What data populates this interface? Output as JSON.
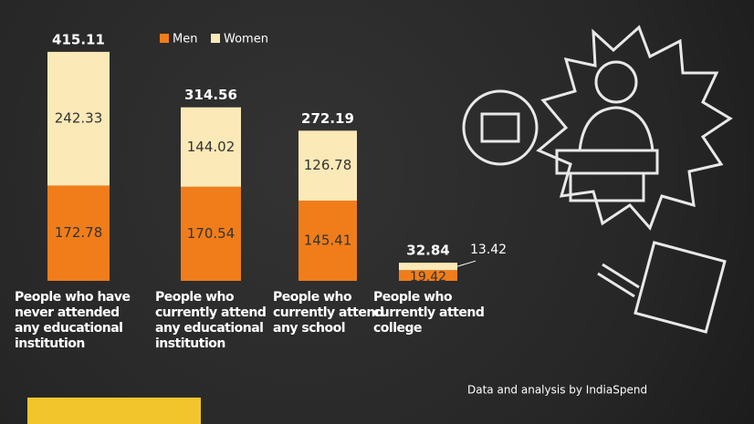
{
  "chart_data": {
    "type": "stacked_bar",
    "categories": [
      "People who have never attended any educational institution",
      "People who currently attend any educational institution",
      "People who currently attend any school",
      "People who currently attend college"
    ],
    "series": [
      {
        "name": "Men",
        "color": "#f07d1a",
        "values": [
          172.78,
          170.54,
          145.41,
          19.42
        ]
      },
      {
        "name": "Women",
        "color": "#fbe9b7",
        "values": [
          242.33,
          144.02,
          126.78,
          13.42
        ]
      }
    ],
    "totals": [
      415.11,
      314.56,
      272.19,
      32.84
    ],
    "source": "Data and analysis by IndiaSpend"
  }
}
